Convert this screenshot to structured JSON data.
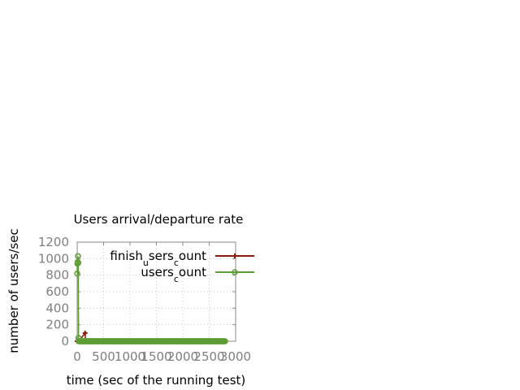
{
  "chart_data": {
    "type": "line",
    "title": "Users arrival/departure rate",
    "xlabel": "time (sec of the running test)",
    "ylabel": "number of users/sec",
    "xlim": [
      0,
      3000
    ],
    "ylim": [
      0,
      1200
    ],
    "xticks": [
      "0",
      "500",
      "1000",
      "1500",
      "2000",
      "2500",
      "3000"
    ],
    "yticks": [
      "0",
      "200",
      "400",
      "600",
      "800",
      "1000",
      "1200"
    ],
    "grid": true,
    "legend_position": "top-right",
    "series": [
      {
        "name_parts": [
          [
            "finish",
            ""
          ],
          [
            "u",
            "sub"
          ],
          [
            "sers",
            ""
          ],
          [
            "c",
            "sub"
          ],
          [
            "ount",
            ""
          ]
        ],
        "color": "#8b1a0e",
        "marker": "plus",
        "points": [
          [
            0,
            0
          ],
          [
            10,
            0
          ],
          [
            20,
            0
          ],
          [
            30,
            0
          ],
          [
            150,
            100
          ],
          [
            160,
            0
          ],
          [
            200,
            0
          ]
        ]
      },
      {
        "name_parts": [
          [
            "users",
            ""
          ],
          [
            "c",
            "sub"
          ],
          [
            "ount",
            ""
          ]
        ],
        "color": "#5e9c36",
        "marker": "circle",
        "points_head": [
          [
            0,
            820
          ],
          [
            5,
            940
          ],
          [
            10,
            960
          ],
          [
            15,
            1030
          ],
          [
            20,
            950
          ],
          [
            25,
            40
          ],
          [
            30,
            0
          ]
        ],
        "x_range": [
          30,
          2800
        ],
        "x_step": 10,
        "tail_value": 0
      }
    ]
  }
}
